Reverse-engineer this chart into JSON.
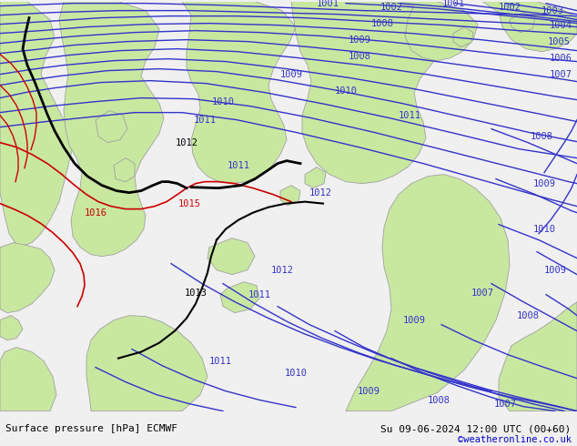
{
  "title_left": "Surface pressure [hPa] ECMWF",
  "title_right": "Su 09-06-2024 12:00 UTC (00+60)",
  "copyright": "©weatheronline.co.uk",
  "bg_color": "#d0d0d0",
  "land_color": "#c8e8a0",
  "coast_color": "#a0a0a0",
  "blue_color": "#3333cc",
  "red_color": "#cc0000",
  "black_color": "#000000",
  "figsize": [
    6.34,
    4.9
  ],
  "dpi": 100,
  "bottom_bar_color": "#f0f0f0",
  "bottom_text_color": "#000000",
  "copyright_color": "#0000cc",
  "label_blue": "#3333cc",
  "label_red": "#cc0000",
  "label_black": "#000000"
}
